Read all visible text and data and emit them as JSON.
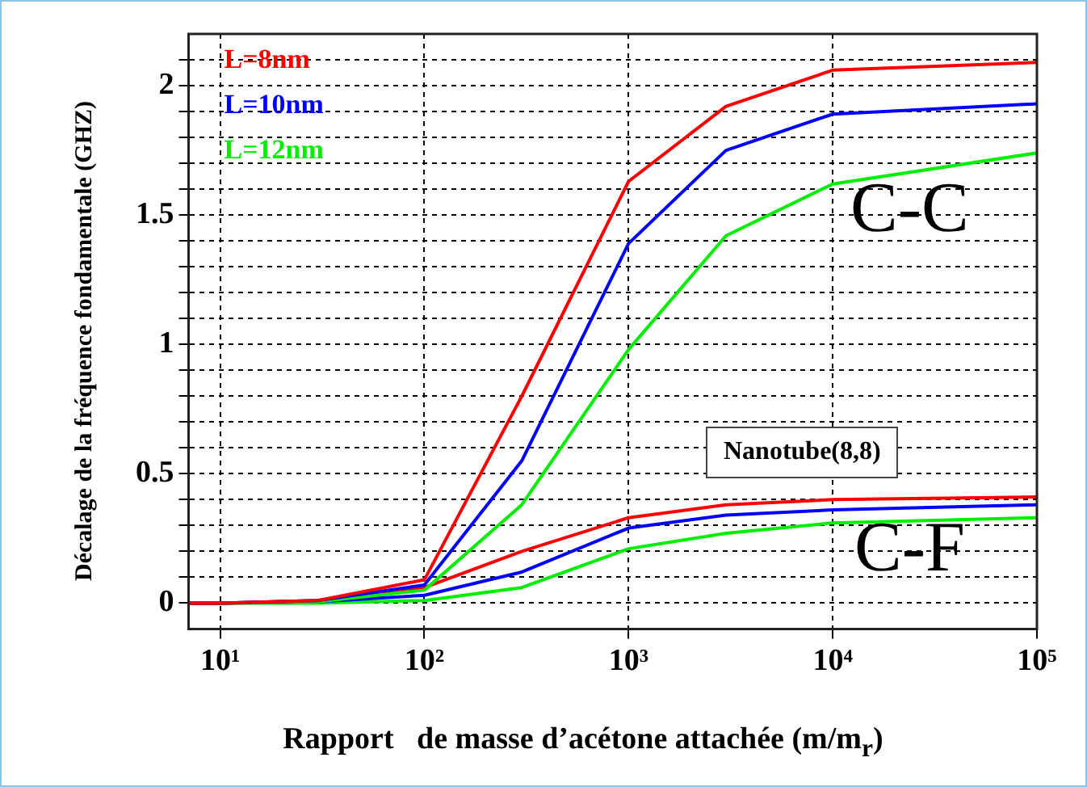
{
  "chart_data": {
    "type": "line",
    "xlabel": "Rapport   de masse d’acétone attachée (m/m$_{r}$)",
    "ylabel": "Décalage de la fréquence  fondamentale (GHZ)",
    "x": [
      7,
      10,
      30,
      100,
      300,
      1000,
      3000,
      10000,
      100000
    ],
    "series": [
      {
        "name": "L=8nm",
        "color": "#ff0000",
        "values": [
          0,
          0,
          0.01,
          0.09,
          0.8,
          1.63,
          1.92,
          2.06,
          2.09
        ]
      },
      {
        "name": "L=10nm",
        "color": "#0000ff",
        "values": [
          0,
          0,
          0.01,
          0.07,
          0.55,
          1.39,
          1.75,
          1.89,
          1.93
        ]
      },
      {
        "name": "L=12nm",
        "color": "#00ee00",
        "values": [
          0,
          0,
          0.005,
          0.05,
          0.38,
          0.98,
          1.42,
          1.62,
          1.74
        ]
      },
      {
        "color": "#ff0000",
        "values": [
          0,
          0,
          0.01,
          0.06,
          0.2,
          0.33,
          0.38,
          0.4,
          0.41
        ]
      },
      {
        "color": "#0000ff",
        "values": [
          0,
          0,
          0.005,
          0.03,
          0.12,
          0.29,
          0.34,
          0.36,
          0.38
        ]
      },
      {
        "color": "#00ee00",
        "values": [
          0,
          0,
          0,
          0.01,
          0.06,
          0.21,
          0.27,
          0.31,
          0.33
        ]
      }
    ],
    "log": "x",
    "xlim": [
      7,
      100000
    ],
    "ylim": [
      -0.1,
      2.2
    ],
    "xticks": [
      {
        "value": 10,
        "label": "10¹"
      },
      {
        "value": 100,
        "label": "10²"
      },
      {
        "value": 1000,
        "label": "10³"
      },
      {
        "value": 10000,
        "label": "10⁴"
      },
      {
        "value": 100000,
        "label": "10⁵"
      }
    ],
    "yticks": [
      0,
      {
        "value": 0.1,
        "label": null
      },
      {
        "value": 0.2,
        "label": null
      },
      {
        "value": 0.3,
        "label": null
      },
      {
        "value": 0.4,
        "label": null
      },
      0.5,
      {
        "value": 0.6,
        "label": null
      },
      {
        "value": 0.7,
        "label": null
      },
      {
        "value": 0.8,
        "label": null
      },
      {
        "value": 0.9,
        "label": null
      },
      1,
      {
        "value": 1.1,
        "label": null
      },
      {
        "value": 1.2,
        "label": null
      },
      {
        "value": 1.3,
        "label": null
      },
      {
        "value": 1.4,
        "label": null
      },
      1.5,
      {
        "value": 1.6,
        "label": null
      },
      {
        "value": 1.7,
        "label": null
      },
      {
        "value": 1.8,
        "label": null
      },
      {
        "value": 1.9,
        "label": null
      },
      2,
      {
        "value": 2.1,
        "label": null
      }
    ],
    "grid": true,
    "legend": "top left",
    "marker": "none",
    "line_style": "solid",
    "annotations": [
      "C-C",
      "C-F",
      "Nanotube(8,8)"
    ]
  }
}
